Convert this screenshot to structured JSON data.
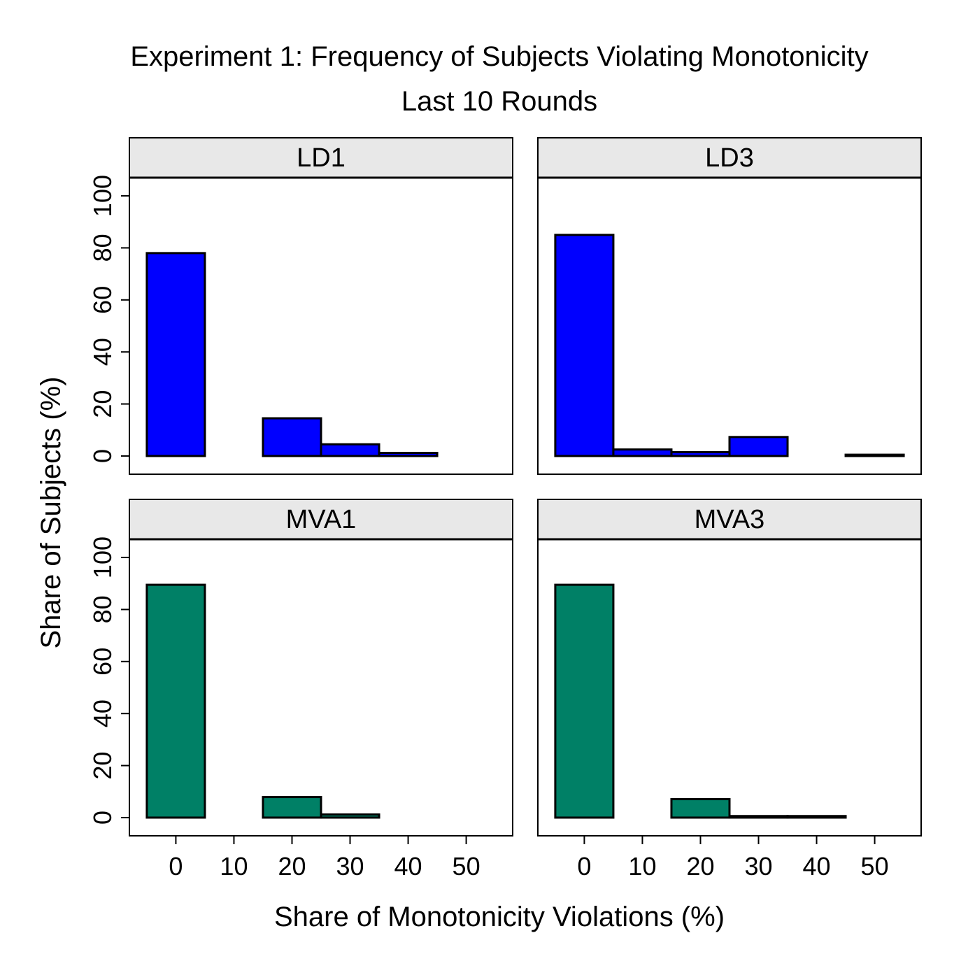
{
  "chart_data": {
    "type": "bar",
    "title": "Experiment 1: Frequency of Subjects Violating Monotonicity",
    "subtitle": "Last 10 Rounds",
    "xlabel": "Share of Monotonicity Violations (%)",
    "ylabel": "Share of Subjects (%)",
    "xlim": [
      -8,
      58
    ],
    "ylim": [
      -7,
      107
    ],
    "xticks": [
      0,
      10,
      20,
      30,
      40,
      50
    ],
    "yticks": [
      0,
      20,
      40,
      60,
      80,
      100
    ],
    "bin_width": 10,
    "layout": "2x2 facet grid",
    "panels": [
      {
        "label": "LD1",
        "color": "#0000ff",
        "bins": [
          0,
          20,
          30,
          40
        ],
        "values": [
          78,
          14.5,
          4.5,
          1.2
        ]
      },
      {
        "label": "LD3",
        "color": "#0000ff",
        "bins": [
          0,
          10,
          20,
          30,
          50
        ],
        "values": [
          85,
          2.5,
          1.5,
          7.3,
          0.5
        ]
      },
      {
        "label": "MVA1",
        "color": "#008066",
        "bins": [
          0,
          20,
          30
        ],
        "values": [
          89.5,
          7.9,
          1.2
        ]
      },
      {
        "label": "MVA3",
        "color": "#008066",
        "bins": [
          0,
          20,
          30,
          40
        ],
        "values": [
          89.5,
          7.1,
          0.6,
          0.6
        ]
      }
    ]
  }
}
